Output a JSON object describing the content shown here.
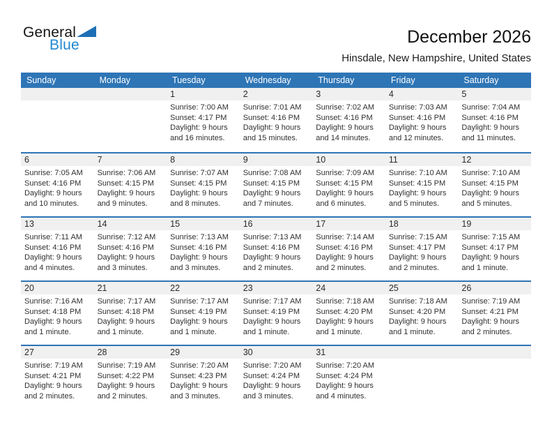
{
  "logo": {
    "general": "General",
    "blue": "Blue"
  },
  "title": "December 2026",
  "subtitle": "Hinsdale, New Hampshire, United States",
  "weekday_headers": [
    "Sunday",
    "Monday",
    "Tuesday",
    "Wednesday",
    "Thursday",
    "Friday",
    "Saturday"
  ],
  "weeks": [
    [
      null,
      null,
      {
        "date": "1",
        "lines": [
          "Sunrise: 7:00 AM",
          "Sunset: 4:17 PM",
          "Daylight: 9 hours",
          "and 16 minutes."
        ]
      },
      {
        "date": "2",
        "lines": [
          "Sunrise: 7:01 AM",
          "Sunset: 4:16 PM",
          "Daylight: 9 hours",
          "and 15 minutes."
        ]
      },
      {
        "date": "3",
        "lines": [
          "Sunrise: 7:02 AM",
          "Sunset: 4:16 PM",
          "Daylight: 9 hours",
          "and 14 minutes."
        ]
      },
      {
        "date": "4",
        "lines": [
          "Sunrise: 7:03 AM",
          "Sunset: 4:16 PM",
          "Daylight: 9 hours",
          "and 12 minutes."
        ]
      },
      {
        "date": "5",
        "lines": [
          "Sunrise: 7:04 AM",
          "Sunset: 4:16 PM",
          "Daylight: 9 hours",
          "and 11 minutes."
        ]
      }
    ],
    [
      {
        "date": "6",
        "lines": [
          "Sunrise: 7:05 AM",
          "Sunset: 4:16 PM",
          "Daylight: 9 hours",
          "and 10 minutes."
        ]
      },
      {
        "date": "7",
        "lines": [
          "Sunrise: 7:06 AM",
          "Sunset: 4:15 PM",
          "Daylight: 9 hours",
          "and 9 minutes."
        ]
      },
      {
        "date": "8",
        "lines": [
          "Sunrise: 7:07 AM",
          "Sunset: 4:15 PM",
          "Daylight: 9 hours",
          "and 8 minutes."
        ]
      },
      {
        "date": "9",
        "lines": [
          "Sunrise: 7:08 AM",
          "Sunset: 4:15 PM",
          "Daylight: 9 hours",
          "and 7 minutes."
        ]
      },
      {
        "date": "10",
        "lines": [
          "Sunrise: 7:09 AM",
          "Sunset: 4:15 PM",
          "Daylight: 9 hours",
          "and 6 minutes."
        ]
      },
      {
        "date": "11",
        "lines": [
          "Sunrise: 7:10 AM",
          "Sunset: 4:15 PM",
          "Daylight: 9 hours",
          "and 5 minutes."
        ]
      },
      {
        "date": "12",
        "lines": [
          "Sunrise: 7:10 AM",
          "Sunset: 4:15 PM",
          "Daylight: 9 hours",
          "and 5 minutes."
        ]
      }
    ],
    [
      {
        "date": "13",
        "lines": [
          "Sunrise: 7:11 AM",
          "Sunset: 4:16 PM",
          "Daylight: 9 hours",
          "and 4 minutes."
        ]
      },
      {
        "date": "14",
        "lines": [
          "Sunrise: 7:12 AM",
          "Sunset: 4:16 PM",
          "Daylight: 9 hours",
          "and 3 minutes."
        ]
      },
      {
        "date": "15",
        "lines": [
          "Sunrise: 7:13 AM",
          "Sunset: 4:16 PM",
          "Daylight: 9 hours",
          "and 3 minutes."
        ]
      },
      {
        "date": "16",
        "lines": [
          "Sunrise: 7:13 AM",
          "Sunset: 4:16 PM",
          "Daylight: 9 hours",
          "and 2 minutes."
        ]
      },
      {
        "date": "17",
        "lines": [
          "Sunrise: 7:14 AM",
          "Sunset: 4:16 PM",
          "Daylight: 9 hours",
          "and 2 minutes."
        ]
      },
      {
        "date": "18",
        "lines": [
          "Sunrise: 7:15 AM",
          "Sunset: 4:17 PM",
          "Daylight: 9 hours",
          "and 2 minutes."
        ]
      },
      {
        "date": "19",
        "lines": [
          "Sunrise: 7:15 AM",
          "Sunset: 4:17 PM",
          "Daylight: 9 hours",
          "and 1 minute."
        ]
      }
    ],
    [
      {
        "date": "20",
        "lines": [
          "Sunrise: 7:16 AM",
          "Sunset: 4:18 PM",
          "Daylight: 9 hours",
          "and 1 minute."
        ]
      },
      {
        "date": "21",
        "lines": [
          "Sunrise: 7:17 AM",
          "Sunset: 4:18 PM",
          "Daylight: 9 hours",
          "and 1 minute."
        ]
      },
      {
        "date": "22",
        "lines": [
          "Sunrise: 7:17 AM",
          "Sunset: 4:19 PM",
          "Daylight: 9 hours",
          "and 1 minute."
        ]
      },
      {
        "date": "23",
        "lines": [
          "Sunrise: 7:17 AM",
          "Sunset: 4:19 PM",
          "Daylight: 9 hours",
          "and 1 minute."
        ]
      },
      {
        "date": "24",
        "lines": [
          "Sunrise: 7:18 AM",
          "Sunset: 4:20 PM",
          "Daylight: 9 hours",
          "and 1 minute."
        ]
      },
      {
        "date": "25",
        "lines": [
          "Sunrise: 7:18 AM",
          "Sunset: 4:20 PM",
          "Daylight: 9 hours",
          "and 1 minute."
        ]
      },
      {
        "date": "26",
        "lines": [
          "Sunrise: 7:19 AM",
          "Sunset: 4:21 PM",
          "Daylight: 9 hours",
          "and 2 minutes."
        ]
      }
    ],
    [
      {
        "date": "27",
        "lines": [
          "Sunrise: 7:19 AM",
          "Sunset: 4:21 PM",
          "Daylight: 9 hours",
          "and 2 minutes."
        ]
      },
      {
        "date": "28",
        "lines": [
          "Sunrise: 7:19 AM",
          "Sunset: 4:22 PM",
          "Daylight: 9 hours",
          "and 2 minutes."
        ]
      },
      {
        "date": "29",
        "lines": [
          "Sunrise: 7:20 AM",
          "Sunset: 4:23 PM",
          "Daylight: 9 hours",
          "and 3 minutes."
        ]
      },
      {
        "date": "30",
        "lines": [
          "Sunrise: 7:20 AM",
          "Sunset: 4:24 PM",
          "Daylight: 9 hours",
          "and 3 minutes."
        ]
      },
      {
        "date": "31",
        "lines": [
          "Sunrise: 7:20 AM",
          "Sunset: 4:24 PM",
          "Daylight: 9 hours",
          "and 4 minutes."
        ]
      },
      null,
      null
    ]
  ],
  "colors": {
    "header_bg": "#2e75b6",
    "row_divider": "#2e74b5",
    "date_band_bg": "#f0f0f0",
    "logo_blue": "#1e88d2",
    "logo_triangle": "#1d6fb5"
  }
}
